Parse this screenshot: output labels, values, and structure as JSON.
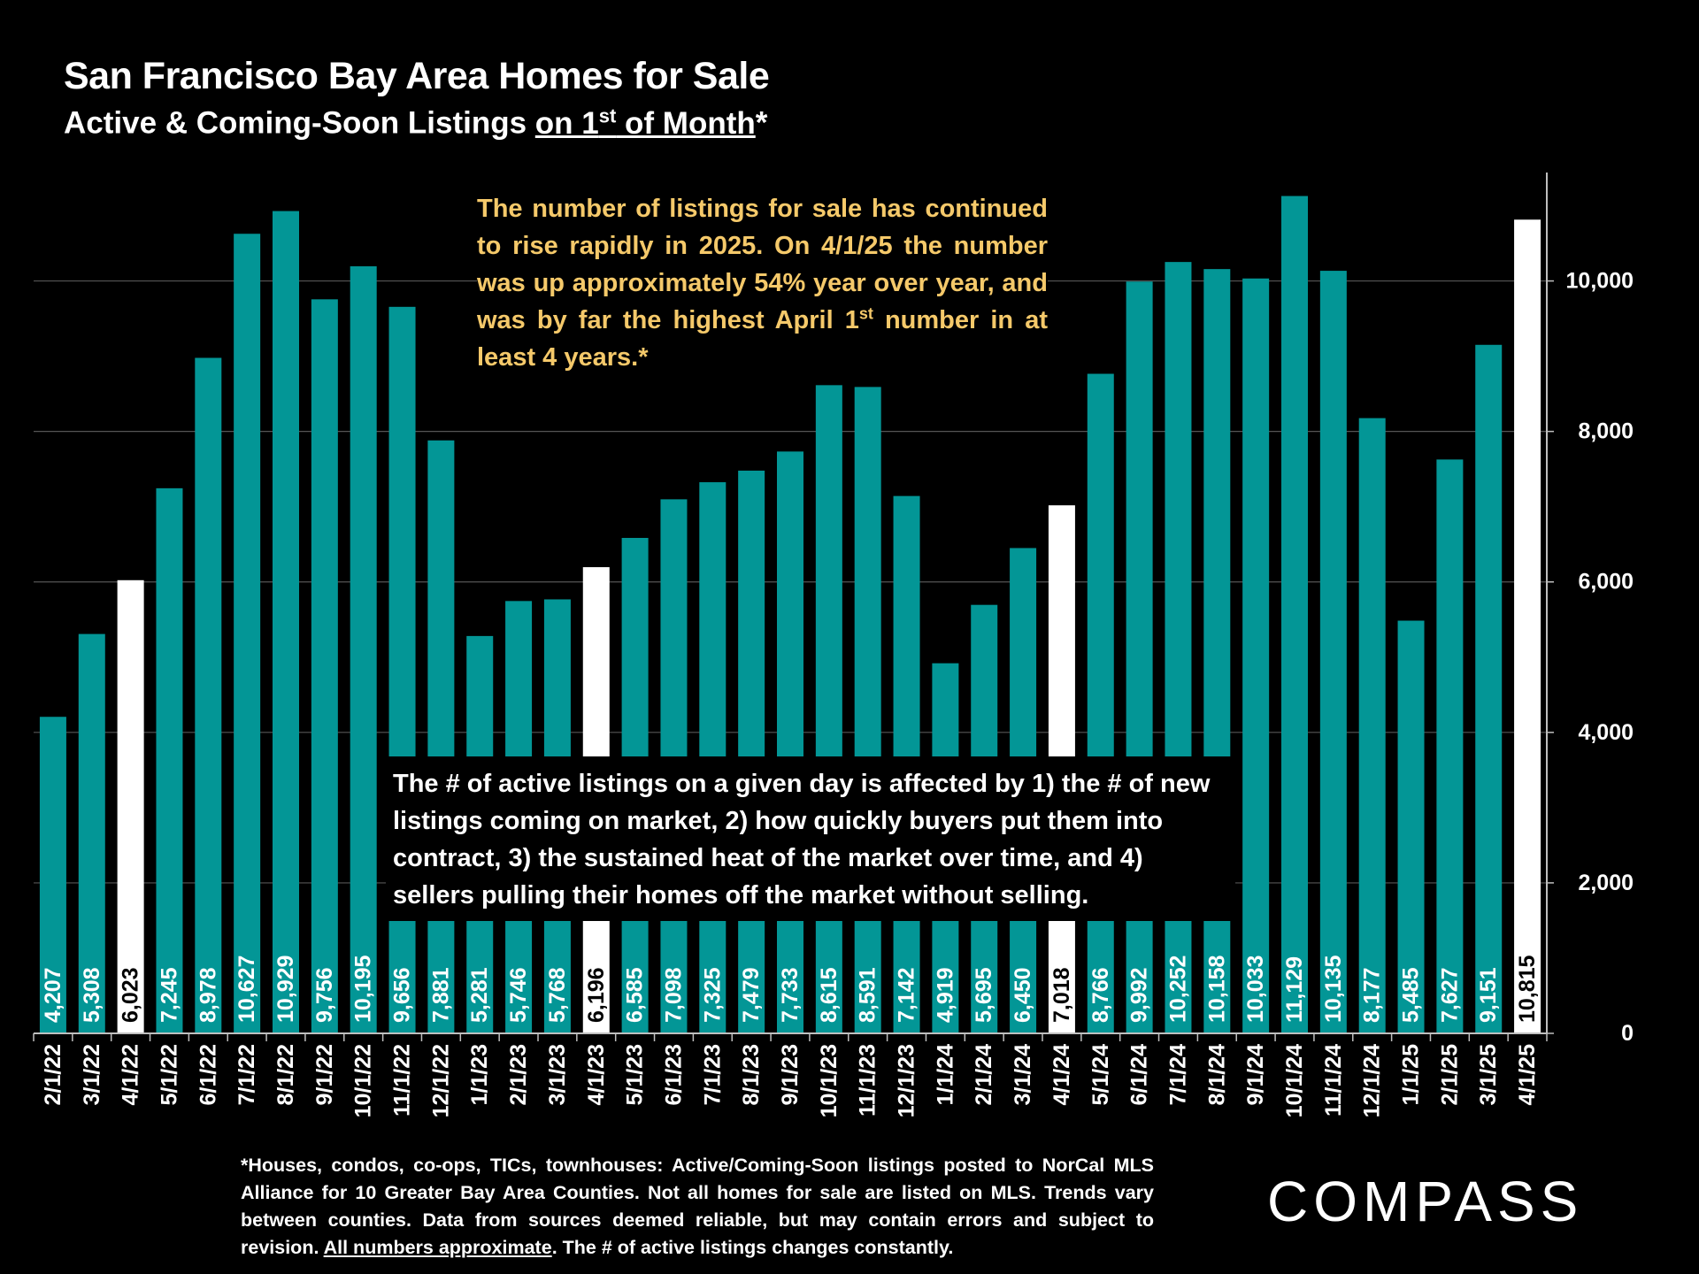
{
  "header": {
    "title": "San Francisco Bay Area Homes for Sale",
    "subtitle_prefix": "Active & Coming-Soon Listings ",
    "subtitle_underlined_a": "on 1",
    "subtitle_sup": "st",
    "subtitle_underlined_b": " of Month",
    "subtitle_suffix": "*"
  },
  "callouts": {
    "top_part1": "The number of listings for sale has continued to rise rapidly in 2025. On 4/1/25 the number was up approximately 54% year over year, and was by far the highest April 1",
    "top_sup": "st",
    "top_part2": " number in at least 4 years.*",
    "bottom": "The # of active listings on a given day is affected by 1) the # of new listings coming on market, 2) how quickly buyers put them into contract, 3) the sustained heat of the market over time, and 4) sellers pulling their homes off the market without selling."
  },
  "footnote": {
    "text_part1": "*Houses, condos, co-ops, TICs, townhouses: Active/Coming-Soon listings posted to NorCal MLS Alliance for 10 Greater Bay Area Counties. Not all homes for sale are listed on MLS. Trends vary between counties. Data from sources deemed reliable, but may contain errors and subject to revision. ",
    "text_underlined": "All numbers approximate",
    "text_part2": ". The # of active listings changes constantly."
  },
  "logo": {
    "text": "COMPASS"
  },
  "colors": {
    "bar": "#039696",
    "highlight": "#ffffff",
    "background": "#000000",
    "callout_text": "#f5c96a"
  },
  "chart_data": {
    "type": "bar",
    "categories": [
      "2/1/22",
      "3/1/22",
      "4/1/22",
      "5/1/22",
      "6/1/22",
      "7/1/22",
      "8/1/22",
      "9/1/22",
      "10/1/22",
      "11/1/22",
      "12/1/22",
      "1/1/23",
      "2/1/23",
      "3/1/23",
      "4/1/23",
      "5/1/23",
      "6/1/23",
      "7/1/23",
      "8/1/23",
      "9/1/23",
      "10/1/23",
      "11/1/23",
      "12/1/23",
      "1/1/24",
      "2/1/24",
      "3/1/24",
      "4/1/24",
      "5/1/24",
      "6/1/24",
      "7/1/24",
      "8/1/24",
      "9/1/24",
      "10/1/24",
      "11/1/24",
      "12/1/24",
      "1/1/25",
      "2/1/25",
      "3/1/25",
      "4/1/25"
    ],
    "values": [
      4207,
      5308,
      6023,
      7245,
      8978,
      10627,
      10929,
      9756,
      10195,
      9656,
      7881,
      5281,
      5746,
      5768,
      6196,
      6585,
      7098,
      7325,
      7479,
      7733,
      8615,
      8591,
      7142,
      4919,
      5695,
      6450,
      7018,
      8766,
      9992,
      10252,
      10158,
      10033,
      11129,
      10135,
      8177,
      5485,
      7627,
      9151,
      10815
    ],
    "value_labels": [
      "4,207",
      "5,308",
      "6,023",
      "7,245",
      "8,978",
      "10,627",
      "10,929",
      "9,756",
      "10,195",
      "9,656",
      "7,881",
      "5,281",
      "5,746",
      "5,768",
      "6,196",
      "6,585",
      "7,098",
      "7,325",
      "7,479",
      "7,733",
      "8,615",
      "8,591",
      "7,142",
      "4,919",
      "5,695",
      "6,450",
      "7,018",
      "8,766",
      "9,992",
      "10,252",
      "10,158",
      "10,033",
      "11,129",
      "10,135",
      "8,177",
      "5,485",
      "7,627",
      "9,151",
      "10,815"
    ],
    "highlighted": [
      "4/1/22",
      "4/1/23",
      "4/1/24",
      "4/1/25"
    ],
    "ylim": [
      0,
      11500
    ],
    "yticks": [
      0,
      2000,
      4000,
      6000,
      8000,
      10000
    ],
    "ytick_labels": [
      "0",
      "2,000",
      "4,000",
      "6,000",
      "8,000",
      "10,000"
    ],
    "y_axis_position": "right",
    "grid": true
  }
}
